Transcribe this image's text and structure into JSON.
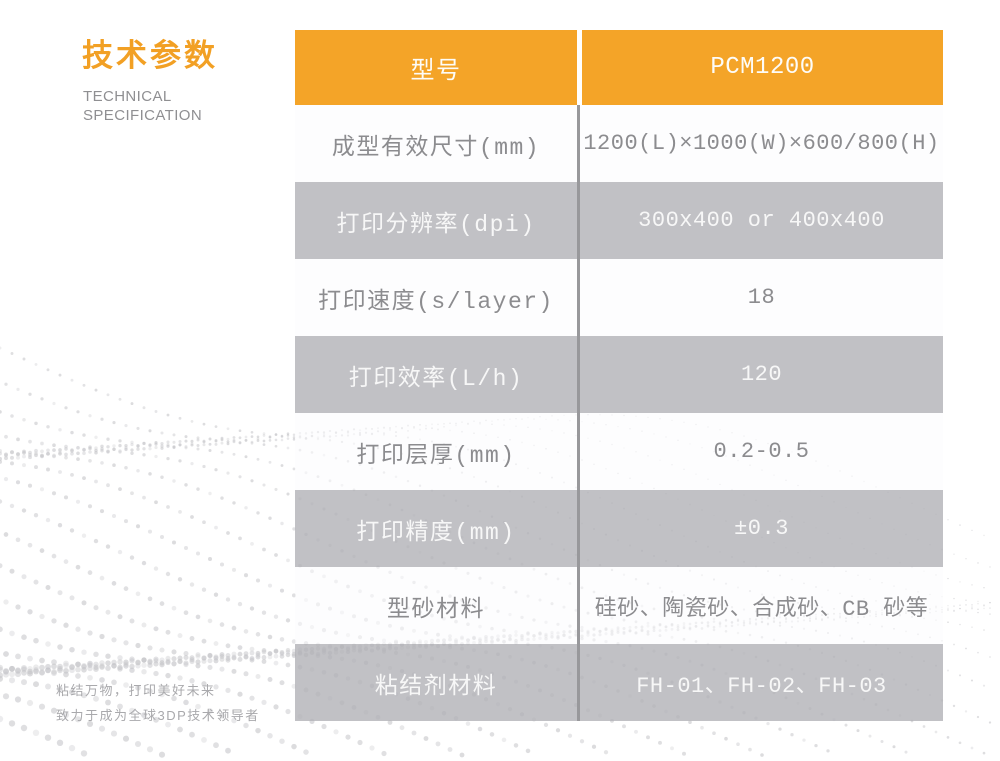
{
  "left": {
    "title_cn": "技术参数",
    "title_en_line1": "TECHNICAL",
    "title_en_line2": "SPECIFICATION",
    "slogan_line1": "粘结万物，打印美好未来",
    "slogan_line2": "致力于成为全球3DP技术领导者"
  },
  "colors": {
    "accent_orange": "#F4A428",
    "row_gray": "#C6C6C9",
    "divider_gray": "#98989B",
    "text_gray": "#8C8C8F",
    "text_white": "#FFFFFF"
  },
  "table": {
    "header": {
      "param": "型号",
      "value": "PCM1200"
    },
    "rows": [
      {
        "param": "成型有效尺寸(mm)",
        "value": "1200(L)×1000(W)×600/800(H)"
      },
      {
        "param": "打印分辨率(dpi)",
        "value": "300x400 or 400x400"
      },
      {
        "param": "打印速度(s/layer)",
        "value": "18"
      },
      {
        "param": "打印效率(L/h)",
        "value": "120"
      },
      {
        "param": "打印层厚(mm)",
        "value": "0.2-0.5"
      },
      {
        "param": "打印精度(mm)",
        "value": "±0.3"
      },
      {
        "param": "型砂材料",
        "value": "硅砂、陶瓷砂、合成砂、CB 砂等"
      },
      {
        "param": "粘结剂材料",
        "value": "FH-01、FH-02、FH-03"
      }
    ]
  }
}
